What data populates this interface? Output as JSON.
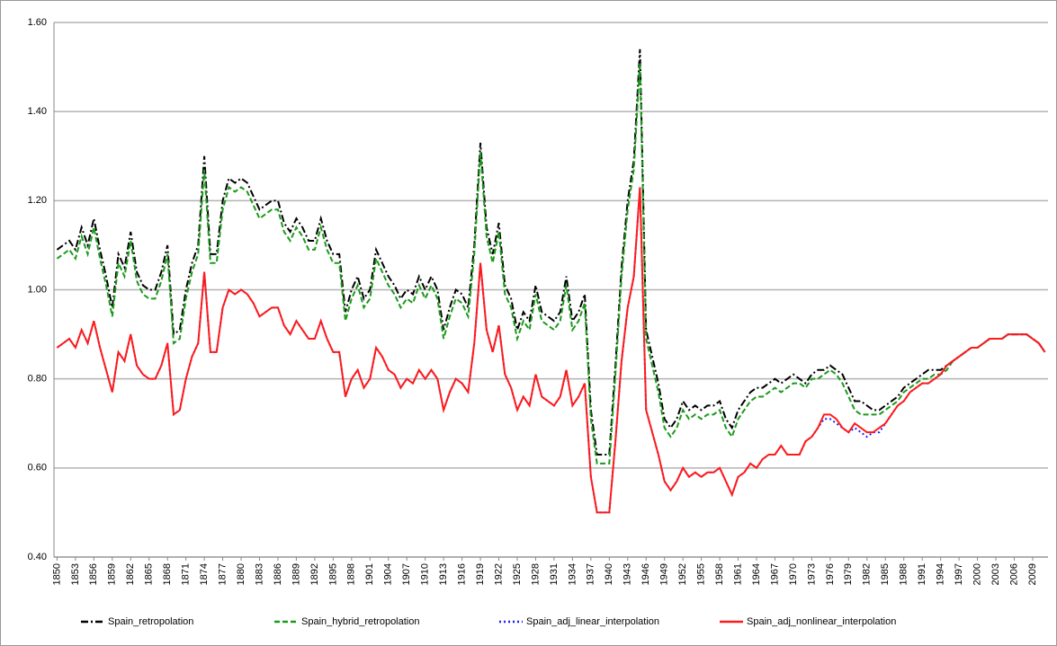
{
  "chart_data": {
    "type": "line",
    "categories": [
      "1850",
      null,
      null,
      "1853",
      null,
      null,
      "1856",
      null,
      null,
      "1859",
      null,
      null,
      "1862",
      null,
      null,
      "1865",
      null,
      null,
      "1868",
      null,
      null,
      "1871",
      null,
      null,
      "1874",
      null,
      null,
      "1877",
      null,
      null,
      "1880",
      null,
      null,
      "1883",
      null,
      null,
      "1886",
      null,
      null,
      "1889",
      null,
      null,
      "1892",
      null,
      null,
      "1895",
      null,
      null,
      "1898",
      null,
      null,
      "1901",
      null,
      null,
      "1904",
      null,
      null,
      "1907",
      null,
      null,
      "1910",
      null,
      null,
      "1913",
      null,
      null,
      "1916",
      null,
      null,
      "1919",
      null,
      null,
      "1922",
      null,
      null,
      "1925",
      null,
      null,
      "1928",
      null,
      null,
      "1931",
      null,
      null,
      "1934",
      null,
      null,
      "1937",
      null,
      null,
      "1940",
      null,
      null,
      "1943",
      null,
      null,
      "1946",
      null,
      null,
      "1949",
      null,
      null,
      "1952",
      null,
      null,
      "1955",
      null,
      null,
      "1958",
      null,
      null,
      "1961",
      null,
      null,
      "1964",
      null,
      null,
      "1967",
      null,
      null,
      "1970",
      null,
      null,
      "1973",
      null,
      null,
      "1976",
      null,
      null,
      "1979",
      null,
      null,
      "1982",
      null,
      null,
      "1985",
      null,
      null,
      "1988",
      null,
      null,
      "1991",
      null,
      null,
      "1994",
      null,
      null,
      "1997",
      null,
      null,
      "2000",
      null,
      null,
      "2003",
      null,
      null,
      "2006",
      null,
      null,
      "2009",
      null,
      null
    ],
    "ylim": [
      0.4,
      1.6
    ],
    "yticks": [
      {
        "value": 0.4,
        "label": "0.40"
      },
      {
        "value": 0.6,
        "label": "0.60"
      },
      {
        "value": 0.8,
        "label": "0.80"
      },
      {
        "value": 1.0,
        "label": "1.00"
      },
      {
        "value": 1.2,
        "label": "1.20"
      },
      {
        "value": 1.4,
        "label": "1.40"
      },
      {
        "value": 1.6,
        "label": "1.60"
      }
    ],
    "grid": true,
    "legend": "bottom",
    "series": [
      {
        "name": "Spain_retropolation",
        "color": "#000000",
        "dash": "dashdot",
        "values": [
          1.09,
          1.1,
          1.11,
          1.09,
          1.14,
          1.1,
          1.16,
          1.09,
          1.03,
          0.96,
          1.08,
          1.05,
          1.13,
          1.04,
          1.01,
          1.0,
          1.0,
          1.04,
          1.1,
          0.9,
          0.91,
          1.0,
          1.06,
          1.1,
          1.3,
          1.08,
          1.08,
          1.2,
          1.25,
          1.24,
          1.25,
          1.24,
          1.21,
          1.18,
          1.19,
          1.2,
          1.2,
          1.15,
          1.13,
          1.16,
          1.14,
          1.11,
          1.11,
          1.16,
          1.11,
          1.08,
          1.08,
          0.95,
          1.0,
          1.03,
          0.98,
          1.0,
          1.09,
          1.06,
          1.03,
          1.01,
          0.98,
          1.0,
          0.99,
          1.03,
          1.0,
          1.03,
          1.0,
          0.91,
          0.96,
          1.0,
          0.99,
          0.96,
          1.1,
          1.33,
          1.14,
          1.08,
          1.15,
          1.01,
          0.98,
          0.91,
          0.95,
          0.93,
          1.01,
          0.95,
          0.94,
          0.93,
          0.95,
          1.03,
          0.93,
          0.95,
          0.99,
          0.73,
          0.63,
          0.63,
          0.63,
          0.83,
          1.05,
          1.2,
          1.29,
          1.54,
          0.91,
          0.85,
          0.79,
          0.71,
          0.69,
          0.71,
          0.75,
          0.73,
          0.74,
          0.73,
          0.74,
          0.74,
          0.75,
          0.71,
          0.69,
          0.73,
          0.75,
          0.77,
          0.78,
          0.78,
          0.79,
          0.8,
          0.79,
          0.8,
          0.81,
          0.8,
          0.79,
          0.81,
          0.82,
          0.82,
          0.83,
          0.82,
          0.81,
          0.78,
          0.75,
          0.75,
          0.74,
          0.73,
          0.73,
          0.74,
          0.75,
          0.76,
          0.78,
          0.79,
          0.8,
          0.81,
          0.82,
          0.82,
          0.82,
          0.83,
          0.84,
          0.85,
          0.86,
          0.87,
          0.87,
          0.88,
          0.89,
          0.89,
          0.89,
          0.9,
          0.9,
          0.9,
          0.9,
          0.89,
          0.88,
          0.86
        ]
      },
      {
        "name": "Spain_hybrid_retropolation",
        "color": "#1a9a1a",
        "dash": "dashed",
        "values": [
          1.07,
          1.08,
          1.09,
          1.07,
          1.12,
          1.08,
          1.14,
          1.07,
          1.01,
          0.94,
          1.06,
          1.03,
          1.11,
          1.02,
          0.99,
          0.98,
          0.98,
          1.02,
          1.08,
          0.88,
          0.89,
          0.98,
          1.04,
          1.08,
          1.27,
          1.06,
          1.06,
          1.18,
          1.23,
          1.22,
          1.23,
          1.22,
          1.19,
          1.16,
          1.17,
          1.18,
          1.18,
          1.13,
          1.11,
          1.14,
          1.12,
          1.09,
          1.09,
          1.14,
          1.09,
          1.06,
          1.06,
          0.93,
          0.98,
          1.01,
          0.96,
          0.98,
          1.07,
          1.04,
          1.01,
          0.99,
          0.96,
          0.98,
          0.97,
          1.01,
          0.98,
          1.01,
          0.98,
          0.89,
          0.94,
          0.98,
          0.97,
          0.94,
          1.08,
          1.31,
          1.12,
          1.06,
          1.13,
          0.99,
          0.96,
          0.89,
          0.93,
          0.91,
          0.99,
          0.93,
          0.92,
          0.91,
          0.93,
          1.01,
          0.91,
          0.93,
          0.97,
          0.71,
          0.61,
          0.61,
          0.61,
          0.81,
          1.03,
          1.18,
          1.27,
          1.51,
          0.89,
          0.83,
          0.77,
          0.69,
          0.67,
          0.69,
          0.73,
          0.71,
          0.72,
          0.71,
          0.72,
          0.72,
          0.73,
          0.69,
          0.67,
          0.71,
          0.73,
          0.75,
          0.76,
          0.76,
          0.77,
          0.78,
          0.77,
          0.78,
          0.79,
          0.79,
          0.78,
          0.8,
          0.8,
          0.81,
          0.82,
          0.81,
          0.79,
          0.76,
          0.73,
          0.72,
          0.72,
          0.72,
          0.72,
          0.73,
          0.74,
          0.75,
          0.77,
          0.78,
          0.79,
          0.8,
          0.8,
          0.81,
          0.81,
          0.82,
          0.84,
          0.85,
          0.86,
          0.87,
          0.87,
          0.88,
          0.89,
          0.89,
          0.89,
          0.9,
          0.9,
          0.9,
          0.9,
          0.89,
          0.88,
          0.86
        ]
      },
      {
        "name": "Spain_adj_linear_interpolation",
        "color": "#1f1fff",
        "dash": "dotted",
        "values": [
          0.87,
          0.88,
          0.89,
          0.87,
          0.91,
          0.88,
          0.93,
          0.87,
          0.82,
          0.77,
          0.86,
          0.84,
          0.9,
          0.83,
          0.81,
          0.8,
          0.8,
          0.83,
          0.88,
          0.72,
          0.73,
          0.8,
          0.85,
          0.88,
          1.04,
          0.86,
          0.86,
          0.96,
          1.0,
          0.99,
          1.0,
          0.99,
          0.97,
          0.94,
          0.95,
          0.96,
          0.96,
          0.92,
          0.9,
          0.93,
          0.91,
          0.89,
          0.89,
          0.93,
          0.89,
          0.86,
          0.86,
          0.76,
          0.8,
          0.82,
          0.78,
          0.8,
          0.87,
          0.85,
          0.82,
          0.81,
          0.78,
          0.8,
          0.79,
          0.82,
          0.8,
          0.82,
          0.8,
          0.73,
          0.77,
          0.8,
          0.79,
          0.77,
          0.88,
          1.06,
          0.91,
          0.86,
          0.92,
          0.81,
          0.78,
          0.73,
          0.76,
          0.74,
          0.81,
          0.76,
          0.75,
          0.74,
          0.76,
          0.82,
          0.74,
          0.76,
          0.79,
          0.58,
          0.5,
          0.5,
          0.5,
          0.66,
          0.84,
          0.96,
          1.03,
          1.23,
          0.73,
          0.68,
          0.63,
          0.57,
          0.55,
          0.57,
          0.6,
          0.58,
          0.59,
          0.58,
          0.59,
          0.59,
          0.6,
          0.57,
          0.54,
          0.58,
          0.59,
          0.61,
          0.6,
          0.62,
          0.63,
          0.63,
          0.65,
          0.63,
          0.63,
          0.63,
          0.66,
          0.67,
          0.69,
          0.71,
          0.71,
          0.7,
          0.69,
          0.68,
          0.69,
          0.68,
          0.67,
          0.68,
          0.68,
          0.7,
          0.72,
          0.74,
          0.75,
          0.77,
          0.78,
          0.79,
          0.79,
          0.8,
          0.81,
          0.83,
          0.84,
          0.85,
          0.86,
          0.87,
          0.87,
          0.88,
          0.89,
          0.89,
          0.89,
          0.9,
          0.9,
          0.9,
          0.9,
          0.89,
          0.88,
          0.86
        ]
      },
      {
        "name": "Spain_adj_nonlinear_interpolation",
        "color": "#ff1a1a",
        "dash": "solid",
        "values": [
          0.87,
          0.88,
          0.89,
          0.87,
          0.91,
          0.88,
          0.93,
          0.87,
          0.82,
          0.77,
          0.86,
          0.84,
          0.9,
          0.83,
          0.81,
          0.8,
          0.8,
          0.83,
          0.88,
          0.72,
          0.73,
          0.8,
          0.85,
          0.88,
          1.04,
          0.86,
          0.86,
          0.96,
          1.0,
          0.99,
          1.0,
          0.99,
          0.97,
          0.94,
          0.95,
          0.96,
          0.96,
          0.92,
          0.9,
          0.93,
          0.91,
          0.89,
          0.89,
          0.93,
          0.89,
          0.86,
          0.86,
          0.76,
          0.8,
          0.82,
          0.78,
          0.8,
          0.87,
          0.85,
          0.82,
          0.81,
          0.78,
          0.8,
          0.79,
          0.82,
          0.8,
          0.82,
          0.8,
          0.73,
          0.77,
          0.8,
          0.79,
          0.77,
          0.88,
          1.06,
          0.91,
          0.86,
          0.92,
          0.81,
          0.78,
          0.73,
          0.76,
          0.74,
          0.81,
          0.76,
          0.75,
          0.74,
          0.76,
          0.82,
          0.74,
          0.76,
          0.79,
          0.58,
          0.5,
          0.5,
          0.5,
          0.66,
          0.84,
          0.96,
          1.03,
          1.23,
          0.73,
          0.68,
          0.63,
          0.57,
          0.55,
          0.57,
          0.6,
          0.58,
          0.59,
          0.58,
          0.59,
          0.59,
          0.6,
          0.57,
          0.54,
          0.58,
          0.59,
          0.61,
          0.6,
          0.62,
          0.63,
          0.63,
          0.65,
          0.63,
          0.63,
          0.63,
          0.66,
          0.67,
          0.69,
          0.72,
          0.72,
          0.71,
          0.69,
          0.68,
          0.7,
          0.69,
          0.68,
          0.68,
          0.69,
          0.7,
          0.72,
          0.74,
          0.75,
          0.77,
          0.78,
          0.79,
          0.79,
          0.8,
          0.81,
          0.83,
          0.84,
          0.85,
          0.86,
          0.87,
          0.87,
          0.88,
          0.89,
          0.89,
          0.89,
          0.9,
          0.9,
          0.9,
          0.9,
          0.89,
          0.88,
          0.86
        ]
      }
    ]
  }
}
